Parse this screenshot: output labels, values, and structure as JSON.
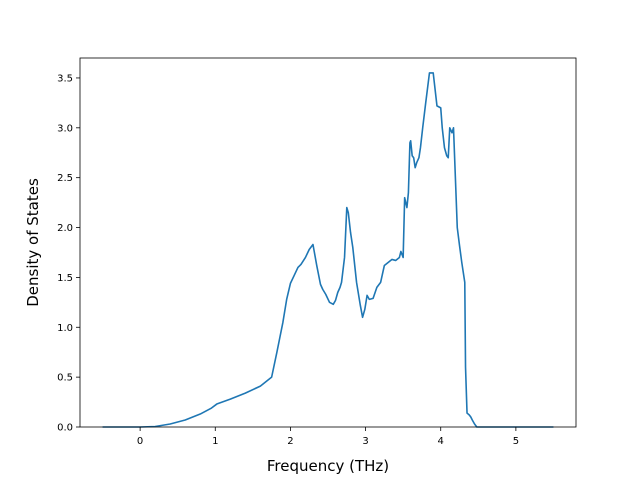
{
  "chart_data": {
    "type": "line",
    "title": "",
    "xlabel": "Frequency (THz)",
    "ylabel": "Density of States",
    "xlim": [
      -0.8,
      5.8
    ],
    "ylim": [
      0.0,
      3.5
    ],
    "ylim_plot": [
      0.0,
      3.7
    ],
    "xticks": [
      0,
      1,
      2,
      3,
      4,
      5
    ],
    "yticks": [
      0.0,
      0.5,
      1.0,
      1.5,
      2.0,
      2.5,
      3.0,
      3.5
    ],
    "ytick_labels": [
      "0.0",
      "0.5",
      "1.0",
      "1.5",
      "2.0",
      "2.5",
      "3.0",
      "3.5"
    ],
    "grid": false,
    "legend": "none",
    "line_color": "#1f77b4",
    "series": [
      {
        "x": [
          -0.5,
          0.0,
          0.2,
          0.4,
          0.6,
          0.8,
          0.95,
          1.02,
          1.2,
          1.4,
          1.6,
          1.7,
          1.75,
          1.82,
          1.86,
          1.9,
          1.95,
          2.0,
          2.05,
          2.1,
          2.14,
          2.2,
          2.25,
          2.3,
          2.35,
          2.4,
          2.43,
          2.47,
          2.52,
          2.57,
          2.6,
          2.63,
          2.66,
          2.68,
          2.72,
          2.75,
          2.77,
          2.8,
          2.83,
          2.88,
          2.93,
          2.96,
          2.99,
          3.02,
          3.05,
          3.1,
          3.15,
          3.2,
          3.25,
          3.3,
          3.35,
          3.4,
          3.45,
          3.47,
          3.5,
          3.52,
          3.55,
          3.57,
          3.59,
          3.6,
          3.62,
          3.64,
          3.66,
          3.68,
          3.71,
          3.73,
          3.76,
          3.8,
          3.85,
          3.9,
          3.95,
          4.0,
          4.02,
          4.05,
          4.08,
          4.1,
          4.12,
          4.15,
          4.17,
          4.2,
          4.22,
          4.25,
          4.28,
          4.3,
          4.32,
          4.33,
          4.35,
          4.38,
          4.4,
          4.42,
          4.45,
          4.48,
          4.5,
          4.55,
          4.6,
          4.65,
          4.68,
          4.7,
          4.72,
          4.8,
          4.9,
          4.98,
          5.02,
          5.1,
          5.3,
          5.5
        ],
        "y": [
          0.0,
          0.0,
          0.005,
          0.03,
          0.07,
          0.13,
          0.19,
          0.23,
          0.28,
          0.34,
          0.41,
          0.47,
          0.5,
          0.75,
          0.9,
          1.05,
          1.28,
          1.44,
          1.52,
          1.6,
          1.63,
          1.7,
          1.78,
          1.83,
          1.62,
          1.43,
          1.38,
          1.33,
          1.25,
          1.23,
          1.27,
          1.35,
          1.4,
          1.45,
          1.7,
          2.2,
          2.15,
          1.95,
          1.8,
          1.45,
          1.22,
          1.1,
          1.18,
          1.32,
          1.28,
          1.29,
          1.4,
          1.45,
          1.62,
          1.65,
          1.68,
          1.67,
          1.7,
          1.76,
          1.7,
          2.3,
          2.2,
          2.35,
          2.85,
          2.87,
          2.72,
          2.7,
          2.6,
          2.65,
          2.7,
          2.8,
          3.0,
          3.25,
          3.55,
          3.55,
          3.22,
          3.2,
          3.0,
          2.8,
          2.72,
          2.7,
          3.0,
          2.95,
          3.0,
          2.4,
          2.0,
          1.82,
          1.65,
          1.55,
          1.45,
          0.6,
          0.14,
          0.12,
          0.1,
          0.07,
          0.03,
          0.0,
          0.0,
          0.0,
          0.0,
          0.0,
          0.0,
          0.0,
          0.0,
          0.0,
          0.0,
          0.0,
          0.0,
          0.0,
          0.0,
          0.0
        ]
      }
    ]
  }
}
